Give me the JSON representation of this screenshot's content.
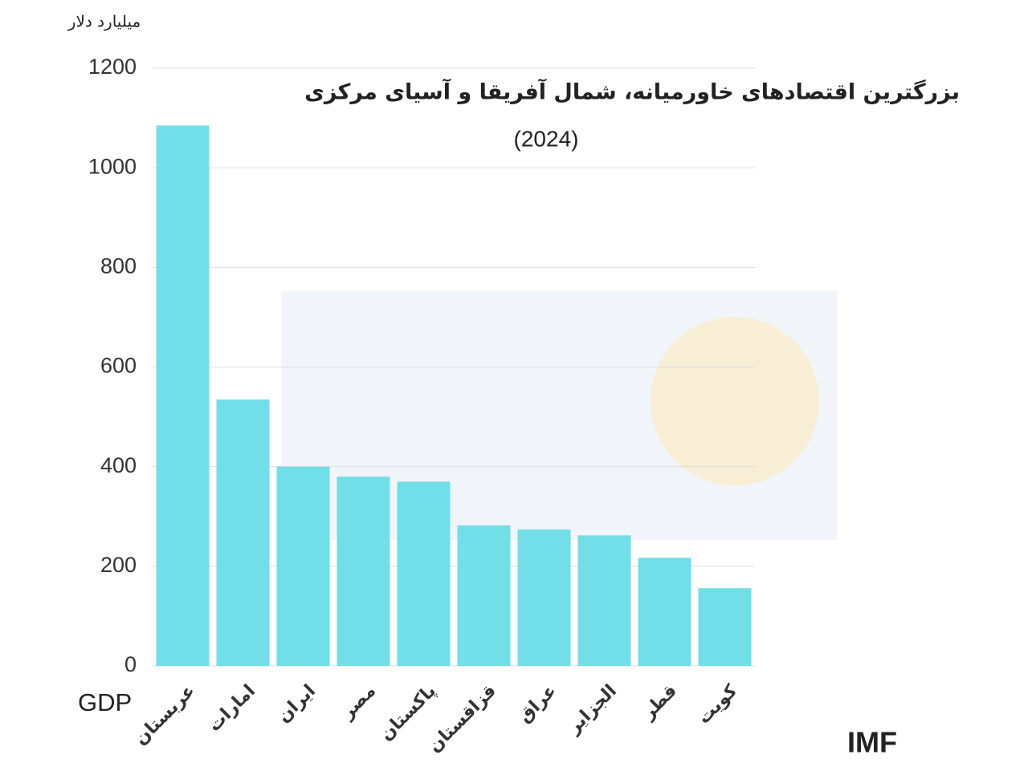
{
  "chart_data": {
    "type": "bar",
    "title": "بزرگترین اقتصادهای خاورمیانه، شمال آفریقا و آسیای مرکزی",
    "subtitle": "(2024)",
    "y_label": "میلیارد دلار",
    "x_label": "GDP",
    "source": "IMF",
    "categories": [
      "عربستان",
      "امارات",
      "ایران",
      "مصر",
      "پاکستان",
      "قزاقستان",
      "عراق",
      "الجزایر",
      "قطر",
      "کویت"
    ],
    "values": [
      1085,
      535,
      400,
      380,
      370,
      282,
      274,
      262,
      217,
      156
    ],
    "color": "#72dee7",
    "ylim": [
      0,
      1200
    ],
    "yticks": [
      0,
      200,
      400,
      600,
      800,
      1000,
      1200
    ],
    "grid": true
  }
}
